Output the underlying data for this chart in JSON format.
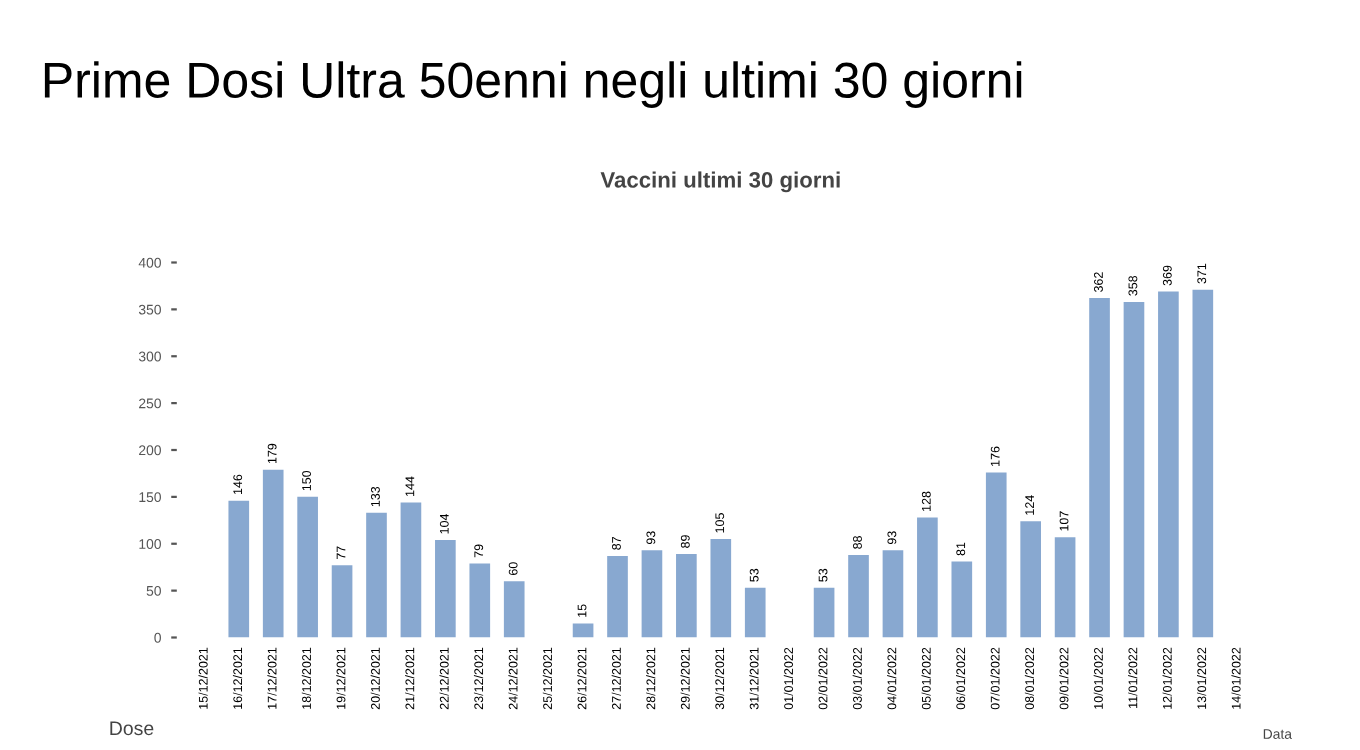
{
  "chart_data": {
    "type": "bar",
    "title": "Prime Dosi Ultra 50enni negli ultimi 30 giorni",
    "subtitle": "Vaccini ultimi 30 giorni",
    "xlabel": "Data",
    "ylabel": "Dose",
    "categories": [
      "15/12/2021",
      "16/12/2021",
      "17/12/2021",
      "18/12/2021",
      "19/12/2021",
      "20/12/2021",
      "21/12/2021",
      "22/12/2021",
      "23/12/2021",
      "24/12/2021",
      "25/12/2021",
      "26/12/2021",
      "27/12/2021",
      "28/12/2021",
      "29/12/2021",
      "30/12/2021",
      "31/12/2021",
      "01/01/2022",
      "02/01/2022",
      "03/01/2022",
      "04/01/2022",
      "05/01/2022",
      "06/01/2022",
      "07/01/2022",
      "08/01/2022",
      "09/01/2022",
      "10/01/2022",
      "11/01/2022",
      "12/01/2022",
      "13/01/2022",
      "14/01/2022"
    ],
    "values": [
      null,
      146,
      179,
      150,
      77,
      133,
      144,
      104,
      79,
      60,
      null,
      15,
      87,
      93,
      89,
      105,
      53,
      null,
      53,
      88,
      93,
      128,
      81,
      176,
      124,
      107,
      362,
      358,
      369,
      371,
      null
    ],
    "color": "#88a8d0",
    "ylim": [
      0,
      400
    ],
    "yticks": [
      0,
      50,
      100,
      150,
      200,
      250,
      300,
      350,
      400
    ],
    "grid": false,
    "data_labels": true
  }
}
